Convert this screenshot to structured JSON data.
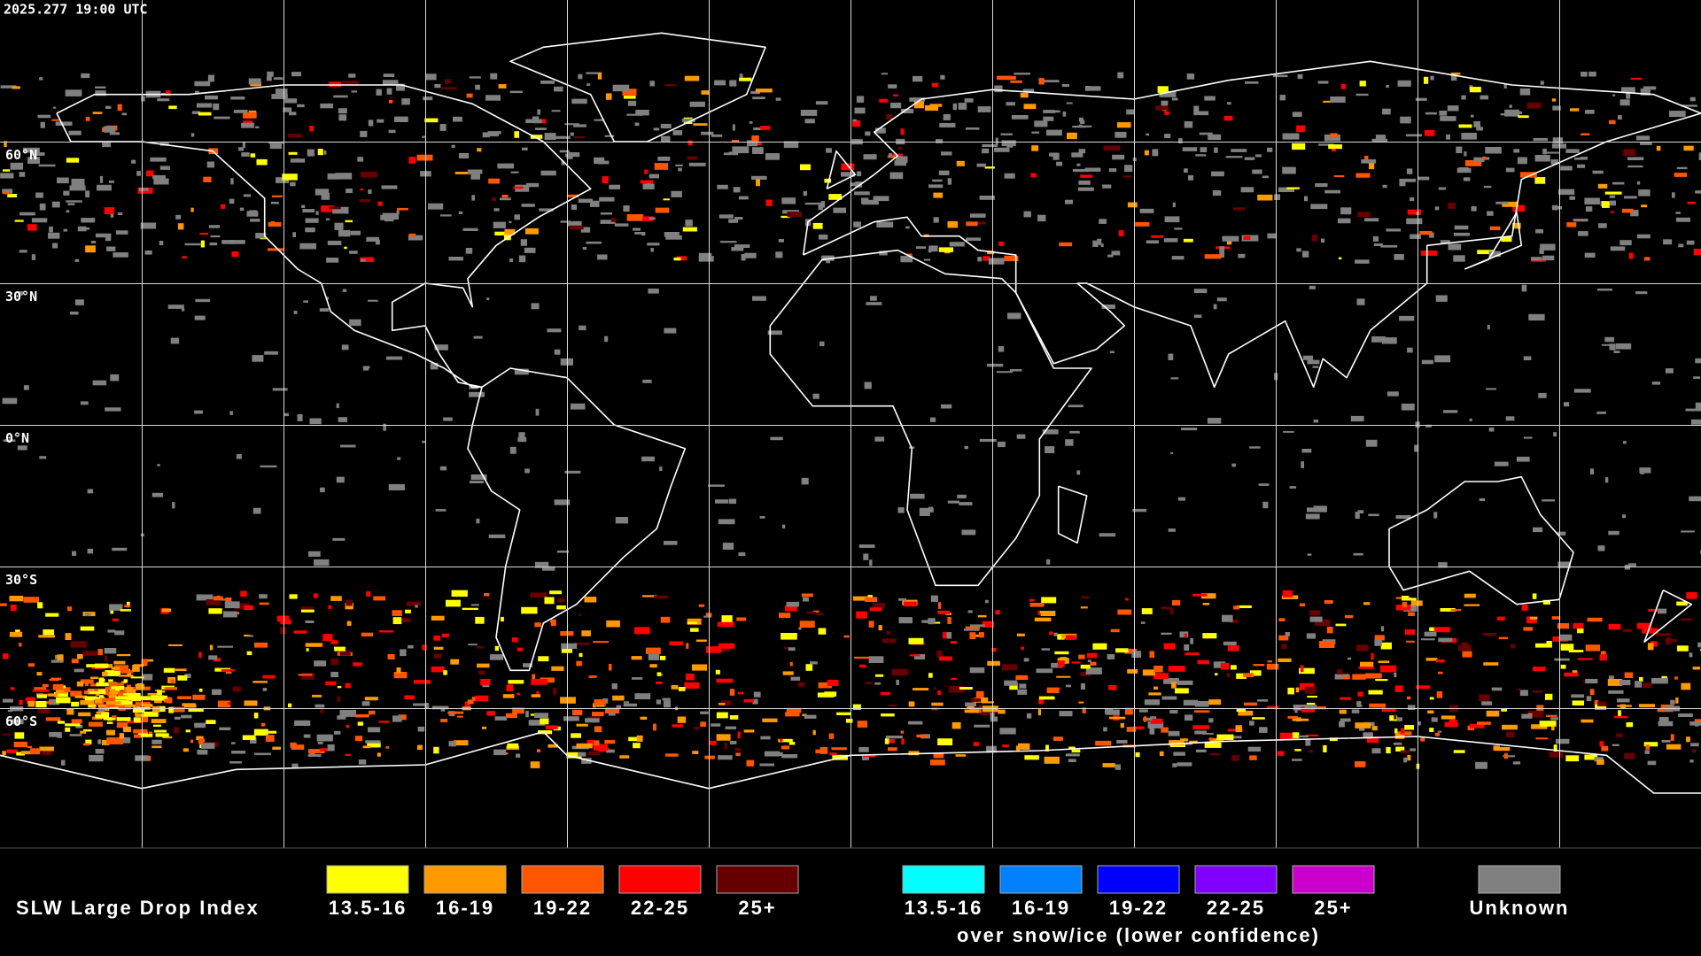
{
  "timestamp": "2025.277 19:00 UTC",
  "latitude_labels": [
    "60°N",
    "30°N",
    "0°N",
    "30°S",
    "60°S"
  ],
  "legend": {
    "title": "SLW Large Drop Index",
    "groups": [
      {
        "items": [
          {
            "label": "13.5-16",
            "color": "#ffff00"
          },
          {
            "label": "16-19",
            "color": "#ff9900"
          },
          {
            "label": "19-22",
            "color": "#ff5500"
          },
          {
            "label": "22-25",
            "color": "#ff0000"
          },
          {
            "label": "25+",
            "color": "#660000"
          }
        ]
      },
      {
        "items": [
          {
            "label": "13.5-16",
            "color": "#00ffff"
          },
          {
            "label": "16-19",
            "color": "#0080ff"
          },
          {
            "label": "19-22",
            "color": "#0000ff"
          },
          {
            "label": "22-25",
            "color": "#8000ff"
          },
          {
            "label": "25+",
            "color": "#cc00cc"
          }
        ],
        "caption": "over snow/ice (lower confidence)"
      },
      {
        "items": [
          {
            "label": "Unknown",
            "color": "#808080"
          }
        ]
      }
    ]
  }
}
